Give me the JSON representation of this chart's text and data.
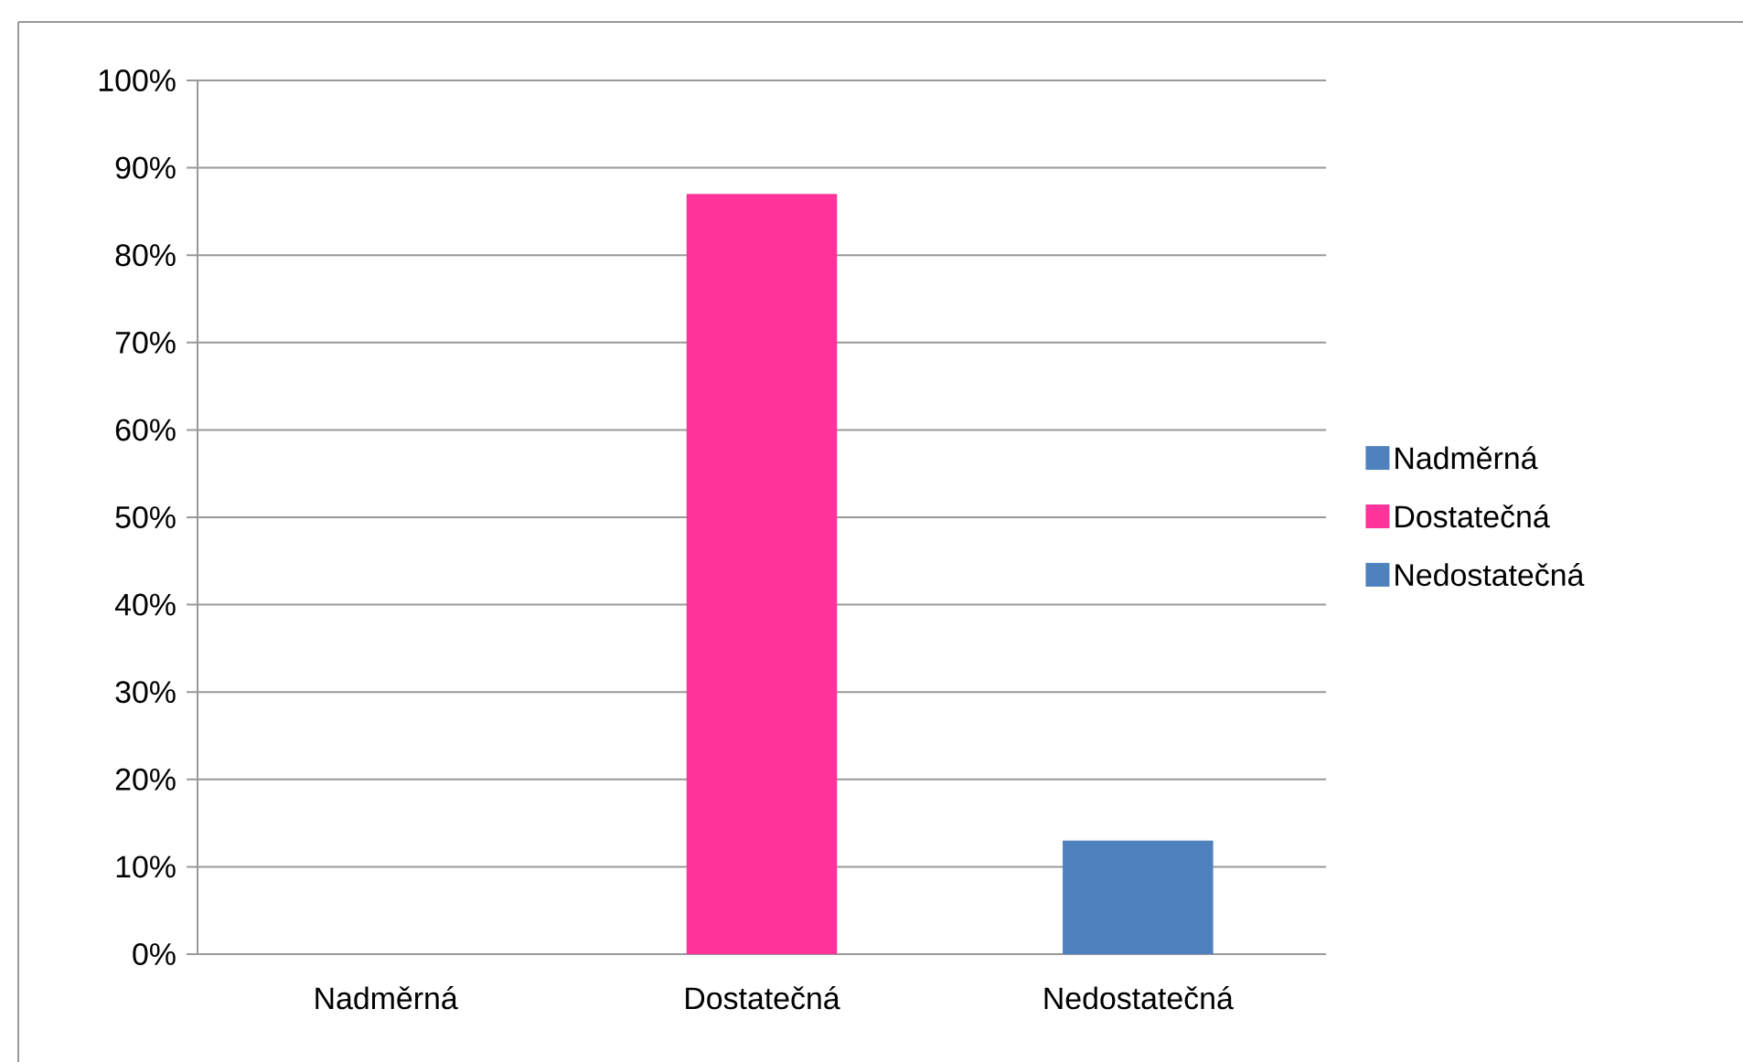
{
  "chart_data": {
    "type": "bar",
    "categories": [
      "Nadměrná",
      "Dostatečná",
      "Nedostatečná"
    ],
    "series": [
      {
        "name": "Nadměrná",
        "color": "#4f81bd",
        "values": [
          0,
          null,
          null
        ]
      },
      {
        "name": "Dostatečná",
        "color": "#ff3399",
        "values": [
          null,
          87,
          null
        ]
      },
      {
        "name": "Nedostatečná",
        "color": "#4f81bd",
        "values": [
          null,
          null,
          13
        ]
      }
    ],
    "ylim": [
      0,
      100
    ],
    "yticks": [
      {
        "value": 0,
        "label": "0%"
      },
      {
        "value": 10,
        "label": "10%"
      },
      {
        "value": 20,
        "label": "20%"
      },
      {
        "value": 30,
        "label": "30%"
      },
      {
        "value": 40,
        "label": "40%"
      },
      {
        "value": 50,
        "label": "50%"
      },
      {
        "value": 60,
        "label": "60%"
      },
      {
        "value": 70,
        "label": "70%"
      },
      {
        "value": 80,
        "label": "80%"
      },
      {
        "value": 90,
        "label": "90%"
      },
      {
        "value": 100,
        "label": "100%"
      }
    ],
    "grid": "y",
    "legend": "right"
  }
}
